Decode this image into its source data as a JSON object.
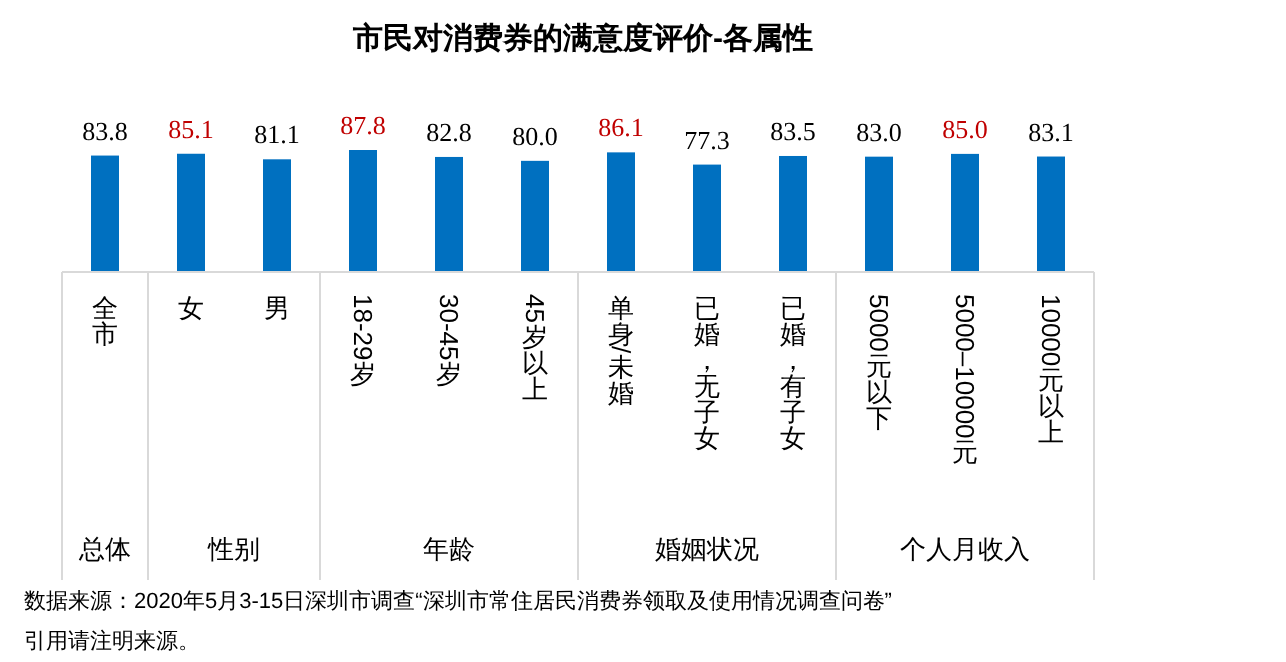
{
  "chart_data": {
    "type": "bar",
    "title": "市民对消费券的满意度评价-各属性",
    "categories": [
      "全市",
      "女",
      "男",
      "18-29岁",
      "30-45岁",
      "45岁以上",
      "单身/未婚",
      "已婚，无子女",
      "已婚，有子女",
      "5000元以下",
      "5000–10000元",
      "10000元以上"
    ],
    "values": [
      83.8,
      85.1,
      81.1,
      87.8,
      82.8,
      80.0,
      86.1,
      77.3,
      83.5,
      83.0,
      85.0,
      83.1
    ],
    "value_labels": [
      "83.8",
      "85.1",
      "81.1",
      "87.8",
      "82.8",
      "80.0",
      "86.1",
      "77.3",
      "83.5",
      "83.0",
      "85.0",
      "83.1"
    ],
    "color": "#0070c0",
    "annotations": [
      "总体",
      "性别",
      "年龄",
      "婚姻状况",
      "个人月收入",
      "数据来源：2020年5月3-15日深圳市调查“深圳市常住居民消费券领取及使用情况调查问卷”",
      "引用请注明来源。"
    ]
  }
}
